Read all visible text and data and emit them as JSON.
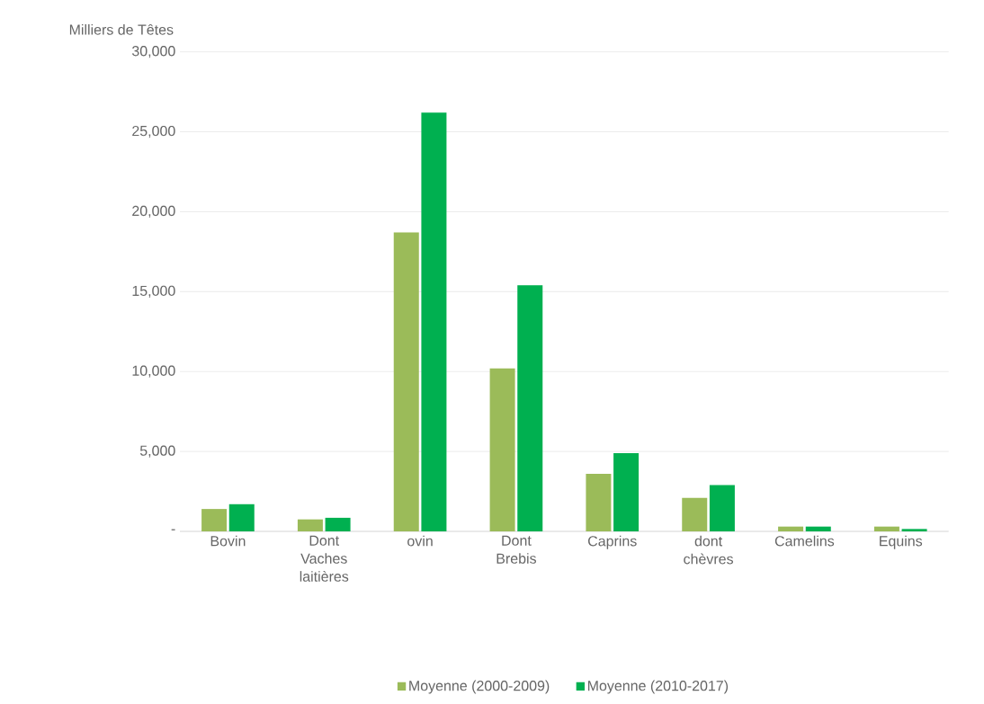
{
  "chart_data": {
    "type": "bar",
    "ylabel": "Milliers de Têtes",
    "categories": [
      "Bovin",
      "Dont Vaches laitières",
      "ovin",
      "Dont Brebis",
      "Caprins",
      "dont chèvres",
      "Camelins",
      "Equins"
    ],
    "series": [
      {
        "name": "Moyenne (2000-2009)",
        "color": "#9bbb59",
        "values": [
          1400,
          750,
          18700,
          10200,
          3600,
          2100,
          300,
          300
        ]
      },
      {
        "name": "Moyenne (2010-2017)",
        "color": "#00b050",
        "values": [
          1700,
          850,
          26200,
          15400,
          4900,
          2900,
          300,
          150
        ]
      }
    ],
    "ylim": [
      0,
      30000
    ],
    "yticks": [
      {
        "value": 0,
        "label": "-"
      },
      {
        "value": 5000,
        "label": "5,000"
      },
      {
        "value": 10000,
        "label": "10,000"
      },
      {
        "value": 15000,
        "label": "15,000"
      },
      {
        "value": 20000,
        "label": "20,000"
      },
      {
        "value": 25000,
        "label": "25,000"
      },
      {
        "value": 30000,
        "label": "30,000"
      }
    ],
    "grid": "y",
    "legend": "bottom"
  }
}
